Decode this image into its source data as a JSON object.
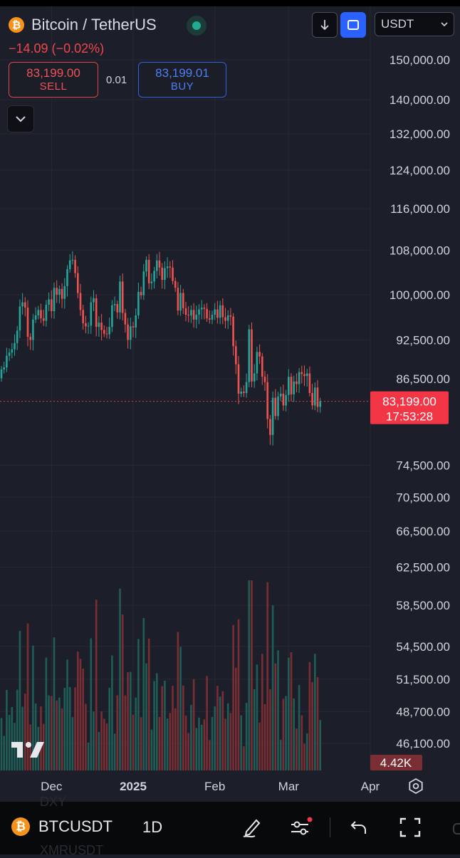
{
  "header": {
    "coin_icon": "₿",
    "title": "Bitcoin / TetherUS",
    "change": "−14.09 (−0.02%)",
    "sell_price": "83,199.00",
    "sell_label": "SELL",
    "spread": "0.01",
    "buy_price": "83,199.01",
    "buy_label": "BUY",
    "currency": "USDT",
    "icons": [
      "bitcoin-icon",
      "live-status-icon",
      "arrow-down-icon",
      "square-icon",
      "chevron-down-icon"
    ]
  },
  "price_tag": {
    "price": "83,199.00",
    "countdown": "17:53:28"
  },
  "volume_tag": "4.42K",
  "watermark": "TV",
  "bottom_bar": {
    "symbol": "BTCUSDT",
    "interval": "1D",
    "ghost_top": "DXY",
    "ghost_bottom": "XMRUSDT",
    "icons": [
      "pen-icon",
      "indicator-settings-icon",
      "undo-icon",
      "fullscreen-icon",
      "gear-icon"
    ]
  },
  "colors": {
    "up": "#26a69a",
    "down": "#ef5350",
    "bg": "#1c1e29",
    "accent": "#2962ff",
    "price_tag": "#f23645"
  },
  "chart_data": {
    "type": "candlestick",
    "symbol": "BTCUSDT",
    "interval": "1D",
    "ylim_visible": [
      44500,
      154000
    ],
    "y_tick_labels": [
      "150,000.00",
      "140,000.00",
      "132,000.00",
      "124,000.00",
      "116,000.00",
      "108,000.00",
      "100,000.00",
      "92,500.00",
      "86,500.00",
      "74,500.00",
      "70,500.00",
      "66,500.00",
      "62,500.00",
      "58,500.00",
      "54,500.00",
      "51,500.00",
      "48,700.00",
      "46,100.00"
    ],
    "x_tick_labels": [
      "Dec",
      "2025",
      "Feb",
      "Mar",
      "Apr"
    ],
    "start_date": "2024-11-12",
    "last_price": 83199.0,
    "closes": [
      87900,
      88200,
      90000,
      90500,
      91000,
      92000,
      94000,
      98000,
      98700,
      97800,
      93000,
      92500,
      95800,
      96500,
      97400,
      96000,
      95600,
      98300,
      99200,
      97200,
      101200,
      100000,
      101000,
      99300,
      101500,
      104500,
      106100,
      106200,
      103800,
      100300,
      97400,
      95200,
      94700,
      94800,
      98700,
      99400,
      94600,
      95300,
      94100,
      93500,
      93400,
      94600,
      98200,
      98400,
      97000,
      102300,
      96900,
      95000,
      92500,
      94700,
      94500,
      96500,
      100500,
      99900,
      104100,
      106200,
      102000,
      102300,
      104200,
      106100,
      104800,
      102600,
      104700,
      105000,
      104800,
      102400,
      101200,
      97300,
      100300,
      97700,
      96600,
      96500,
      97400,
      95800,
      96600,
      97500,
      97800,
      97600,
      96000,
      95800,
      96600,
      97500,
      96100,
      98200,
      96200,
      95600,
      96500,
      96300,
      91500,
      88700,
      84300,
      84600,
      84400,
      86000,
      94200,
      86100,
      87300,
      90600,
      89900,
      86800,
      86000,
      80700,
      78500,
      83700,
      81100,
      83900,
      84300,
      82600,
      84100,
      86800,
      84200,
      86100,
      85700,
      87500,
      87200,
      86900,
      87300,
      84400,
      82600,
      85200,
      82400,
      83200
    ],
    "volume_scale_max": 30000
  }
}
